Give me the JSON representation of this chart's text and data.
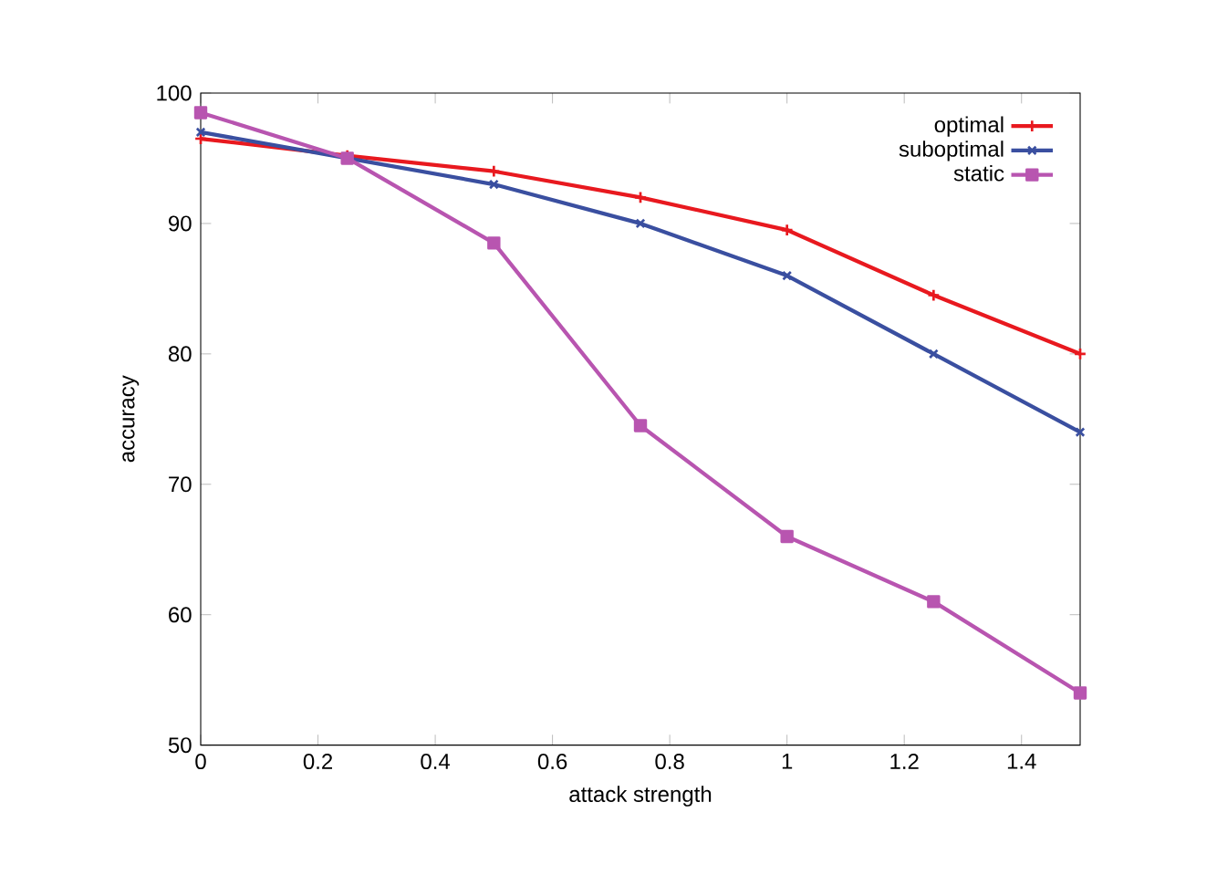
{
  "chart_data": {
    "type": "line",
    "xlabel": "attack strength",
    "ylabel": "accuracy",
    "x": [
      0,
      0.25,
      0.5,
      0.75,
      1,
      1.25,
      1.5
    ],
    "series": [
      {
        "name": "optimal",
        "color": "#e8191f",
        "marker": "plus",
        "values": [
          96.5,
          95.2,
          94,
          92,
          89.5,
          84.5,
          80
        ]
      },
      {
        "name": "suboptimal",
        "color": "#3a4fa0",
        "marker": "cross",
        "values": [
          97,
          95,
          93,
          90,
          86,
          80,
          74
        ]
      },
      {
        "name": "static",
        "color": "#b855b0",
        "marker": "square",
        "values": [
          98.5,
          95,
          88.5,
          74.5,
          66,
          61,
          54
        ]
      }
    ],
    "xlim": [
      0,
      1.5
    ],
    "ylim": [
      50,
      100
    ],
    "xticks": [
      0,
      0.2,
      0.4,
      0.6,
      0.8,
      1,
      1.2,
      1.4
    ],
    "yticks": [
      50,
      60,
      70,
      80,
      90,
      100
    ],
    "grid": false,
    "legend": "top right",
    "line_style": "solid"
  }
}
